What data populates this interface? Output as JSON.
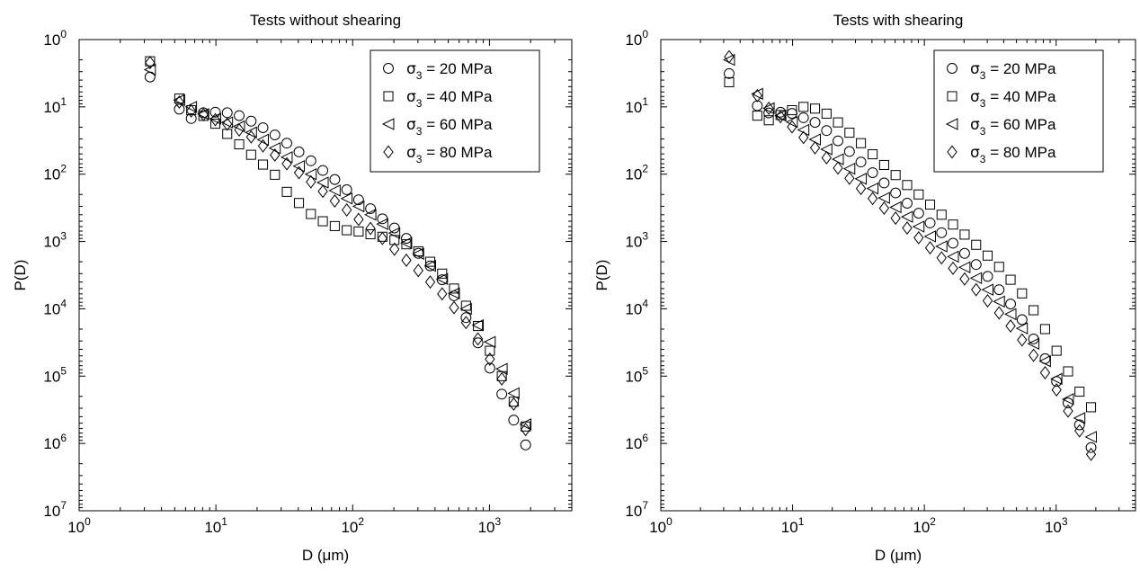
{
  "chart_data": [
    {
      "type": "scatter",
      "title": "Tests without shearing",
      "xlabel": "D (μm)",
      "ylabel": "P(D)",
      "x_scale": "log",
      "y_scale": "log",
      "xlim": [
        1,
        4000
      ],
      "ylim": [
        1,
        10000000
      ],
      "y_inverted": true,
      "grid": false,
      "legend_position": "top-right",
      "x_ticks": [
        {
          "base": "10",
          "exp": "0"
        },
        {
          "base": "10",
          "exp": "1"
        },
        {
          "base": "10",
          "exp": "2"
        },
        {
          "base": "10",
          "exp": "3"
        }
      ],
      "y_ticks": [
        {
          "base": "10",
          "exp": "0"
        },
        {
          "base": "10",
          "exp": "1"
        },
        {
          "base": "10",
          "exp": "2"
        },
        {
          "base": "10",
          "exp": "3"
        },
        {
          "base": "10",
          "exp": "4"
        },
        {
          "base": "10",
          "exp": "5"
        },
        {
          "base": "10",
          "exp": "6"
        },
        {
          "base": "10",
          "exp": "7"
        }
      ],
      "series": [
        {
          "name": "σ3 = 20 MPa",
          "symbol": "σ",
          "subscript": "3",
          "value_text": " = 20 MPa",
          "marker": "circle",
          "x": [
            3.3,
            5.4,
            6.6,
            8.1,
            9.9,
            12.1,
            14.8,
            18.1,
            22.1,
            27,
            33,
            40.5,
            49.5,
            60.5,
            74,
            90.5,
            110.5,
            135,
            165,
            202,
            247,
            302,
            369,
            451,
            551,
            674,
            824,
            1007,
            1231,
            1504,
            1839
          ],
          "y": [
            3.6,
            10.8,
            14.9,
            12.2,
            12.0,
            12.2,
            13.5,
            16.3,
            20.4,
            26.1,
            34.6,
            46.7,
            63.3,
            88,
            120,
            170,
            240,
            325,
            460,
            630,
            900,
            1500,
            2300,
            3700,
            6400,
            13500,
            32000,
            76000,
            185000,
            450000,
            1050000
          ]
        },
        {
          "name": "σ3 = 40 MPa",
          "symbol": "σ",
          "subscript": "3",
          "value_text": " = 40 MPa",
          "marker": "square",
          "x": [
            3.3,
            5.4,
            6.6,
            8.1,
            9.9,
            12.1,
            14.8,
            18.1,
            22.1,
            27,
            33,
            40.5,
            49.5,
            60.5,
            74,
            90.5,
            110.5,
            135,
            165,
            202,
            247,
            302,
            369,
            451,
            551,
            674,
            824,
            1007,
            1231,
            1504,
            1839
          ],
          "y": [
            2.1,
            7.5,
            11.2,
            13.6,
            17.8,
            25.2,
            36.0,
            51.5,
            72,
            102,
            183,
            268,
            390,
            500,
            590,
            680,
            710,
            780,
            850,
            950,
            1100,
            1400,
            2000,
            3000,
            5000,
            9000,
            18000,
            42000,
            100000,
            240000,
            560000
          ]
        },
        {
          "name": "σ3 = 60 MPa",
          "symbol": "σ",
          "subscript": "3",
          "value_text": " = 60 MPa",
          "marker": "triangle",
          "x": [
            3.3,
            5.4,
            6.6,
            8.1,
            9.9,
            12.1,
            14.8,
            18.1,
            22.1,
            27,
            33,
            40.5,
            49.5,
            60.5,
            74,
            90.5,
            110.5,
            135,
            165,
            202,
            247,
            302,
            369,
            451,
            551,
            674,
            824,
            1007,
            1231,
            1504,
            1839
          ],
          "y": [
            2.8,
            7.9,
            10.0,
            12.8,
            15.0,
            17.0,
            19.5,
            24.0,
            30.8,
            41,
            56,
            76,
            100,
            133,
            175,
            230,
            300,
            400,
            550,
            750,
            1050,
            1520,
            2300,
            3600,
            5900,
            10000,
            17500,
            31000,
            78000,
            180000,
            520000
          ]
        },
        {
          "name": "σ3 = 80 MPa",
          "symbol": "σ",
          "subscript": "3",
          "value_text": " = 80 MPa",
          "marker": "diamond",
          "x": [
            3.3,
            5.4,
            6.6,
            8.1,
            9.9,
            12.1,
            14.8,
            18.1,
            22.1,
            27,
            33,
            40.5,
            49.5,
            60.5,
            74,
            90.5,
            110.5,
            135,
            165,
            202,
            247,
            302,
            369,
            451,
            551,
            674,
            824,
            1007,
            1231,
            1504,
            1839
          ],
          "y": [
            2.2,
            8.5,
            11.5,
            13.0,
            15.5,
            18.0,
            22.0,
            28.0,
            38.0,
            52.0,
            70,
            95,
            130,
            180,
            250,
            340,
            470,
            640,
            900,
            1300,
            1900,
            2700,
            4000,
            6000,
            9600,
            16000,
            28000,
            56000,
            110000,
            260000,
            620000
          ]
        }
      ]
    },
    {
      "type": "scatter",
      "title": "Tests with shearing",
      "xlabel": "D (μm)",
      "ylabel": "P(D)",
      "x_scale": "log",
      "y_scale": "log",
      "xlim": [
        1,
        4000
      ],
      "ylim": [
        1,
        10000000
      ],
      "y_inverted": true,
      "grid": false,
      "legend_position": "top-right",
      "x_ticks": [
        {
          "base": "10",
          "exp": "0"
        },
        {
          "base": "10",
          "exp": "1"
        },
        {
          "base": "10",
          "exp": "2"
        },
        {
          "base": "10",
          "exp": "3"
        }
      ],
      "y_ticks": [
        {
          "base": "10",
          "exp": "0"
        },
        {
          "base": "10",
          "exp": "1"
        },
        {
          "base": "10",
          "exp": "2"
        },
        {
          "base": "10",
          "exp": "3"
        },
        {
          "base": "10",
          "exp": "4"
        },
        {
          "base": "10",
          "exp": "5"
        },
        {
          "base": "10",
          "exp": "6"
        },
        {
          "base": "10",
          "exp": "7"
        }
      ],
      "series": [
        {
          "name": "σ3 = 20 MPa",
          "symbol": "σ",
          "subscript": "3",
          "value_text": " = 20 MPa",
          "marker": "circle",
          "x": [
            3.3,
            5.4,
            6.6,
            8.1,
            9.9,
            12.1,
            14.8,
            18.1,
            22.1,
            27,
            33,
            40.5,
            49.5,
            60.5,
            74,
            90.5,
            110.5,
            135,
            165,
            202,
            247,
            302,
            369,
            451,
            551,
            674,
            824,
            1007,
            1231,
            1504,
            1839
          ],
          "y": [
            3.2,
            9.6,
            12.3,
            12.0,
            12.5,
            14.5,
            17.0,
            22.5,
            32.0,
            46,
            66,
            95,
            135,
            190,
            270,
            380,
            530,
            740,
            1060,
            1500,
            2200,
            3300,
            5200,
            8500,
            14500,
            28000,
            55000,
            120000,
            250000,
            530000,
            1150000
          ]
        },
        {
          "name": "σ3 = 40 MPa",
          "symbol": "σ",
          "subscript": "3",
          "value_text": " = 40 MPa",
          "marker": "square",
          "x": [
            3.3,
            5.4,
            6.6,
            8.1,
            9.9,
            12.1,
            14.8,
            18.1,
            22.1,
            27,
            33,
            40.5,
            49.5,
            60.5,
            74,
            90.5,
            110.5,
            135,
            165,
            202,
            247,
            302,
            369,
            451,
            551,
            674,
            824,
            1007,
            1231,
            1504,
            1839
          ],
          "y": [
            4.3,
            13.5,
            15.8,
            13.2,
            11.2,
            10.0,
            10.6,
            12.6,
            17.0,
            24.2,
            34.6,
            50.6,
            73,
            103,
            145,
            200,
            283,
            400,
            560,
            790,
            1120,
            1620,
            2380,
            3700,
            5900,
            10500,
            20000,
            42000,
            85000,
            170000,
            290000
          ]
        },
        {
          "name": "σ3 = 60 MPa",
          "symbol": "σ",
          "subscript": "3",
          "value_text": " = 60 MPa",
          "marker": "triangle",
          "x": [
            3.3,
            5.4,
            6.6,
            8.1,
            9.9,
            12.1,
            14.8,
            18.1,
            22.1,
            27,
            33,
            40.5,
            49.5,
            60.5,
            74,
            90.5,
            110.5,
            135,
            165,
            202,
            247,
            302,
            369,
            451,
            551,
            674,
            824,
            1007,
            1231,
            1504,
            1839
          ],
          "y": [
            2.0,
            6.4,
            10.5,
            13.5,
            16.8,
            22.0,
            30.5,
            42.6,
            60,
            83,
            117,
            163,
            225,
            310,
            430,
            600,
            840,
            1180,
            1680,
            2420,
            3500,
            5200,
            7800,
            12000,
            19500,
            33000,
            60000,
            110000,
            220000,
            420000,
            800000
          ]
        },
        {
          "name": "σ3 = 80 MPa",
          "symbol": "σ",
          "subscript": "3",
          "value_text": " = 80 MPa",
          "marker": "diamond",
          "x": [
            3.3,
            5.4,
            6.6,
            8.1,
            9.9,
            12.1,
            14.8,
            18.1,
            22.1,
            27,
            33,
            40.5,
            49.5,
            60.5,
            74,
            90.5,
            110.5,
            135,
            165,
            202,
            247,
            302,
            369,
            451,
            551,
            674,
            824,
            1007,
            1231,
            1504,
            1839
          ],
          "y": [
            1.8,
            6.8,
            10.5,
            14.0,
            19.8,
            28.5,
            40.6,
            57,
            81,
            115,
            163,
            230,
            320,
            450,
            630,
            880,
            1240,
            1750,
            2500,
            3600,
            5200,
            7600,
            11500,
            18000,
            29000,
            49000,
            89000,
            160000,
            330000,
            650000,
            1450000
          ]
        }
      ]
    }
  ]
}
